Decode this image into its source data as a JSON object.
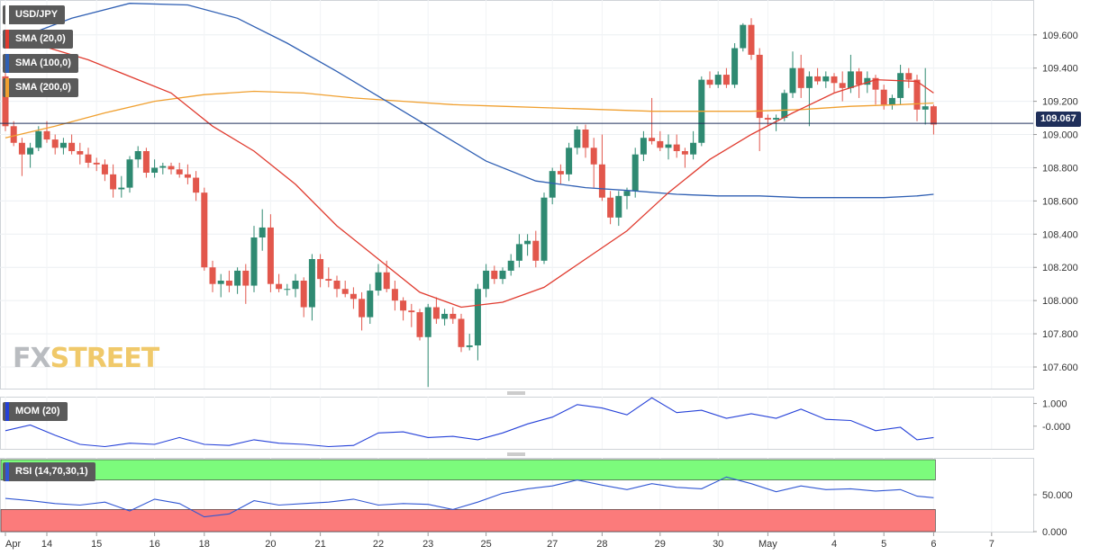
{
  "legend": {
    "symbol": "USD/JPY",
    "sma20": "SMA (20,0)",
    "sma100": "SMA (100,0)",
    "sma200": "SMA (200,0)",
    "mom": "MOM (20)",
    "rsi": "RSI (14,70,30,1)"
  },
  "logo": {
    "part1": "FX",
    "part2": "STREET"
  },
  "colors": {
    "up": "#2f8a72",
    "down": "#e2574c",
    "sma20": "#e03b2f",
    "sma100": "#2f5fb3",
    "sma200": "#f0a030",
    "mom": "#2440d8",
    "rsi": "#3056d3",
    "overbought": "#7cfb7c",
    "oversold": "#fb7b7b",
    "current_line": "#1f2f5a"
  },
  "chart_data": [
    {
      "type": "candlestick",
      "title": "USD/JPY",
      "current_price": "109.067",
      "ylim": [
        107.47,
        109.81
      ],
      "y_ticks": [
        "109.600",
        "109.400",
        "109.200",
        "109.000",
        "108.800",
        "108.600",
        "108.400",
        "108.200",
        "108.000",
        "107.800",
        "107.600"
      ],
      "x_ticks": [
        "Apr",
        "14",
        "15",
        "16",
        "18",
        "20",
        "21",
        "22",
        "23",
        "25",
        "27",
        "28",
        "29",
        "30",
        "May",
        "4",
        "5",
        "6",
        "7"
      ],
      "candles": [
        [
          109.35,
          109.4,
          109.02,
          109.05
        ],
        [
          109.05,
          109.08,
          108.93,
          108.95
        ],
        [
          108.95,
          108.98,
          108.75,
          108.88
        ],
        [
          108.88,
          108.95,
          108.8,
          108.92
        ],
        [
          108.92,
          109.05,
          108.9,
          109.02
        ],
        [
          109.02,
          109.08,
          108.95,
          108.97
        ],
        [
          108.97,
          109.0,
          108.88,
          108.92
        ],
        [
          108.92,
          108.98,
          108.88,
          108.95
        ],
        [
          108.95,
          109.0,
          108.88,
          108.9
        ],
        [
          108.9,
          108.95,
          108.82,
          108.88
        ],
        [
          108.88,
          108.92,
          108.8,
          108.83
        ],
        [
          108.83,
          108.86,
          108.78,
          108.82
        ],
        [
          108.82,
          108.85,
          108.72,
          108.76
        ],
        [
          108.76,
          108.82,
          108.62,
          108.67
        ],
        [
          108.67,
          108.75,
          108.62,
          108.68
        ],
        [
          108.68,
          108.87,
          108.65,
          108.85
        ],
        [
          108.85,
          108.93,
          108.8,
          108.9
        ],
        [
          108.9,
          108.92,
          108.74,
          108.77
        ],
        [
          108.77,
          108.85,
          108.74,
          108.8
        ],
        [
          108.8,
          108.83,
          108.76,
          108.81
        ],
        [
          108.81,
          108.83,
          108.76,
          108.79
        ],
        [
          108.79,
          108.83,
          108.74,
          108.76
        ],
        [
          108.76,
          108.82,
          108.7,
          108.74
        ],
        [
          108.74,
          108.78,
          108.6,
          108.65
        ],
        [
          108.65,
          108.68,
          108.18,
          108.2
        ],
        [
          108.2,
          108.24,
          108.05,
          108.1
        ],
        [
          108.1,
          108.16,
          108.02,
          108.12
        ],
        [
          108.12,
          108.18,
          108.05,
          108.09
        ],
        [
          108.09,
          108.2,
          108.04,
          108.18
        ],
        [
          108.18,
          108.22,
          107.98,
          108.09
        ],
        [
          108.09,
          108.45,
          108.05,
          108.38
        ],
        [
          108.38,
          108.55,
          108.3,
          108.44
        ],
        [
          108.44,
          108.52,
          108.05,
          108.1
        ],
        [
          108.1,
          108.16,
          108.05,
          108.07
        ],
        [
          108.07,
          108.1,
          108.03,
          108.07
        ],
        [
          108.07,
          108.16,
          108.02,
          108.12
        ],
        [
          108.12,
          108.14,
          107.9,
          107.96
        ],
        [
          107.96,
          108.28,
          107.88,
          108.25
        ],
        [
          108.25,
          108.28,
          108.08,
          108.13
        ],
        [
          108.13,
          108.2,
          108.08,
          108.12
        ],
        [
          108.12,
          108.15,
          108.02,
          108.07
        ],
        [
          108.07,
          108.12,
          108.02,
          108.04
        ],
        [
          108.04,
          108.08,
          107.95,
          108.01
        ],
        [
          108.01,
          108.05,
          107.82,
          107.9
        ],
        [
          107.9,
          108.1,
          107.86,
          108.06
        ],
        [
          108.06,
          108.22,
          108.03,
          108.17
        ],
        [
          108.17,
          108.24,
          108.05,
          108.07
        ],
        [
          108.07,
          108.12,
          107.94,
          108.0
        ],
        [
          108.0,
          108.02,
          107.88,
          107.94
        ],
        [
          107.94,
          107.98,
          107.84,
          107.93
        ],
        [
          107.93,
          107.95,
          107.76,
          107.78
        ],
        [
          107.78,
          107.98,
          107.48,
          107.96
        ],
        [
          107.96,
          108.02,
          107.86,
          107.89
        ],
        [
          107.89,
          107.95,
          107.85,
          107.92
        ],
        [
          107.92,
          107.96,
          107.86,
          107.89
        ],
        [
          107.89,
          107.92,
          107.69,
          107.72
        ],
        [
          107.72,
          107.8,
          107.7,
          107.73
        ],
        [
          107.73,
          108.1,
          107.64,
          108.07
        ],
        [
          108.07,
          108.22,
          108.02,
          108.18
        ],
        [
          108.18,
          108.21,
          108.1,
          108.13
        ],
        [
          108.13,
          108.2,
          108.1,
          108.18
        ],
        [
          108.18,
          108.28,
          108.15,
          108.24
        ],
        [
          108.24,
          108.4,
          108.2,
          108.34
        ],
        [
          108.34,
          108.4,
          108.27,
          108.36
        ],
        [
          108.36,
          108.42,
          108.2,
          108.24
        ],
        [
          108.24,
          108.65,
          108.22,
          108.62
        ],
        [
          108.62,
          108.8,
          108.58,
          108.78
        ],
        [
          108.78,
          108.82,
          108.7,
          108.76
        ],
        [
          108.76,
          108.95,
          108.72,
          108.92
        ],
        [
          108.92,
          109.05,
          108.88,
          109.03
        ],
        [
          109.03,
          109.06,
          108.86,
          108.92
        ],
        [
          108.92,
          108.98,
          108.68,
          108.82
        ],
        [
          108.82,
          109.0,
          108.6,
          108.62
        ],
        [
          108.62,
          108.66,
          108.46,
          108.5
        ],
        [
          108.5,
          108.66,
          108.45,
          108.63
        ],
        [
          108.63,
          108.68,
          108.55,
          108.66
        ],
        [
          108.66,
          108.92,
          108.62,
          108.88
        ],
        [
          108.88,
          109.02,
          108.84,
          108.98
        ],
        [
          108.98,
          109.22,
          108.94,
          108.96
        ],
        [
          108.96,
          109.02,
          108.9,
          108.92
        ],
        [
          108.92,
          109.0,
          108.85,
          108.94
        ],
        [
          108.94,
          109.0,
          108.86,
          108.9
        ],
        [
          108.9,
          108.92,
          108.8,
          108.88
        ],
        [
          108.88,
          109.02,
          108.85,
          108.95
        ],
        [
          108.95,
          109.35,
          108.93,
          109.33
        ],
        [
          109.33,
          109.38,
          109.28,
          109.3
        ],
        [
          109.3,
          109.38,
          109.28,
          109.36
        ],
        [
          109.36,
          109.4,
          109.28,
          109.3
        ],
        [
          109.3,
          109.55,
          109.28,
          109.52
        ],
        [
          109.52,
          109.67,
          109.5,
          109.66
        ],
        [
          109.66,
          109.7,
          109.45,
          109.48
        ],
        [
          109.48,
          109.52,
          108.9,
          109.1
        ],
        [
          109.1,
          109.12,
          109.05,
          109.09
        ],
        [
          109.09,
          109.12,
          109.02,
          109.1
        ],
        [
          109.1,
          109.27,
          109.08,
          109.25
        ],
        [
          109.25,
          109.5,
          109.22,
          109.4
        ],
        [
          109.4,
          109.48,
          109.22,
          109.28
        ],
        [
          109.28,
          109.38,
          109.05,
          109.35
        ],
        [
          109.35,
          109.4,
          109.3,
          109.32
        ],
        [
          109.32,
          109.38,
          109.28,
          109.35
        ],
        [
          109.35,
          109.37,
          109.25,
          109.31
        ],
        [
          109.31,
          109.38,
          109.2,
          109.28
        ],
        [
          109.28,
          109.48,
          109.25,
          109.38
        ],
        [
          109.38,
          109.4,
          109.22,
          109.3
        ],
        [
          109.3,
          109.38,
          109.25,
          109.34
        ],
        [
          109.34,
          109.36,
          109.18,
          109.27
        ],
        [
          109.27,
          109.3,
          109.15,
          109.18
        ],
        [
          109.18,
          109.24,
          109.15,
          109.22
        ],
        [
          109.22,
          109.42,
          109.18,
          109.37
        ],
        [
          109.37,
          109.4,
          109.28,
          109.33
        ],
        [
          109.33,
          109.36,
          109.08,
          109.15
        ],
        [
          109.15,
          109.4,
          109.06,
          109.17
        ],
        [
          109.17,
          109.18,
          109.0,
          109.06
        ]
      ],
      "sma20": [
        [
          0,
          109.6
        ],
        [
          10,
          109.45
        ],
        [
          20,
          109.25
        ],
        [
          25,
          109.05
        ],
        [
          30,
          108.9
        ],
        [
          35,
          108.7
        ],
        [
          40,
          108.45
        ],
        [
          45,
          108.25
        ],
        [
          50,
          108.05
        ],
        [
          55,
          107.96
        ],
        [
          60,
          107.99
        ],
        [
          65,
          108.08
        ],
        [
          70,
          108.25
        ],
        [
          75,
          108.42
        ],
        [
          80,
          108.65
        ],
        [
          85,
          108.85
        ],
        [
          90,
          109.0
        ],
        [
          95,
          109.13
        ],
        [
          100,
          109.25
        ],
        [
          105,
          109.33
        ],
        [
          110,
          109.32
        ],
        [
          112,
          109.25
        ]
      ],
      "sma100": [
        [
          0,
          109.55
        ],
        [
          8,
          109.7
        ],
        [
          15,
          109.79
        ],
        [
          22,
          109.78
        ],
        [
          28,
          109.7
        ],
        [
          34,
          109.55
        ],
        [
          40,
          109.38
        ],
        [
          46,
          109.2
        ],
        [
          52,
          109.02
        ],
        [
          58,
          108.84
        ],
        [
          64,
          108.72
        ],
        [
          70,
          108.68
        ],
        [
          76,
          108.66
        ],
        [
          81,
          108.64
        ],
        [
          86,
          108.63
        ],
        [
          91,
          108.63
        ],
        [
          96,
          108.62
        ],
        [
          101,
          108.62
        ],
        [
          106,
          108.62
        ],
        [
          110,
          108.63
        ],
        [
          112,
          108.64
        ]
      ],
      "sma200": [
        [
          0,
          108.98
        ],
        [
          6,
          109.05
        ],
        [
          12,
          109.13
        ],
        [
          18,
          109.2
        ],
        [
          24,
          109.24
        ],
        [
          30,
          109.26
        ],
        [
          36,
          109.25
        ],
        [
          42,
          109.22
        ],
        [
          48,
          109.2
        ],
        [
          54,
          109.18
        ],
        [
          60,
          109.17
        ],
        [
          66,
          109.16
        ],
        [
          72,
          109.15
        ],
        [
          78,
          109.14
        ],
        [
          84,
          109.14
        ],
        [
          90,
          109.14
        ],
        [
          96,
          109.15
        ],
        [
          102,
          109.17
        ],
        [
          108,
          109.18
        ],
        [
          112,
          109.19
        ]
      ]
    },
    {
      "type": "line",
      "name": "MOM (20)",
      "ylim": [
        -1.0,
        1.3
      ],
      "y_ticks": [
        "1.000",
        "-0.000"
      ],
      "values": [
        [
          0,
          -0.2
        ],
        [
          3,
          0.05
        ],
        [
          6,
          -0.4
        ],
        [
          9,
          -0.8
        ],
        [
          12,
          -0.9
        ],
        [
          15,
          -0.75
        ],
        [
          18,
          -0.8
        ],
        [
          21,
          -0.5
        ],
        [
          24,
          -0.8
        ],
        [
          27,
          -0.85
        ],
        [
          30,
          -0.6
        ],
        [
          33,
          -0.75
        ],
        [
          36,
          -0.8
        ],
        [
          39,
          -0.9
        ],
        [
          42,
          -0.85
        ],
        [
          45,
          -0.3
        ],
        [
          48,
          -0.25
        ],
        [
          51,
          -0.5
        ],
        [
          54,
          -0.45
        ],
        [
          57,
          -0.6
        ],
        [
          60,
          -0.3
        ],
        [
          63,
          0.1
        ],
        [
          66,
          0.4
        ],
        [
          69,
          0.95
        ],
        [
          72,
          0.8
        ],
        [
          75,
          0.5
        ],
        [
          78,
          1.25
        ],
        [
          81,
          0.6
        ],
        [
          84,
          0.7
        ],
        [
          87,
          0.35
        ],
        [
          90,
          0.55
        ],
        [
          93,
          0.35
        ],
        [
          96,
          0.75
        ],
        [
          99,
          0.3
        ],
        [
          102,
          0.25
        ],
        [
          105,
          -0.2
        ],
        [
          108,
          -0.05
        ],
        [
          110,
          -0.6
        ],
        [
          112,
          -0.5
        ]
      ]
    },
    {
      "type": "line",
      "name": "RSI (14,70,30,1)",
      "ylim": [
        0,
        100
      ],
      "y_ticks": [
        "50.000",
        "0.000"
      ],
      "overbought": 70,
      "oversold": 30,
      "values": [
        [
          0,
          45
        ],
        [
          3,
          42
        ],
        [
          6,
          38
        ],
        [
          9,
          36
        ],
        [
          12,
          40
        ],
        [
          15,
          28
        ],
        [
          18,
          44
        ],
        [
          21,
          38
        ],
        [
          24,
          20
        ],
        [
          27,
          24
        ],
        [
          30,
          42
        ],
        [
          33,
          36
        ],
        [
          36,
          38
        ],
        [
          39,
          40
        ],
        [
          42,
          44
        ],
        [
          45,
          36
        ],
        [
          48,
          38
        ],
        [
          51,
          37
        ],
        [
          54,
          30
        ],
        [
          57,
          40
        ],
        [
          60,
          52
        ],
        [
          63,
          58
        ],
        [
          66,
          62
        ],
        [
          69,
          70
        ],
        [
          72,
          63
        ],
        [
          75,
          57
        ],
        [
          78,
          65
        ],
        [
          81,
          60
        ],
        [
          84,
          58
        ],
        [
          87,
          74
        ],
        [
          90,
          65
        ],
        [
          93,
          54
        ],
        [
          96,
          62
        ],
        [
          99,
          57
        ],
        [
          102,
          58
        ],
        [
          105,
          55
        ],
        [
          108,
          57
        ],
        [
          110,
          48
        ],
        [
          112,
          46
        ]
      ]
    }
  ]
}
